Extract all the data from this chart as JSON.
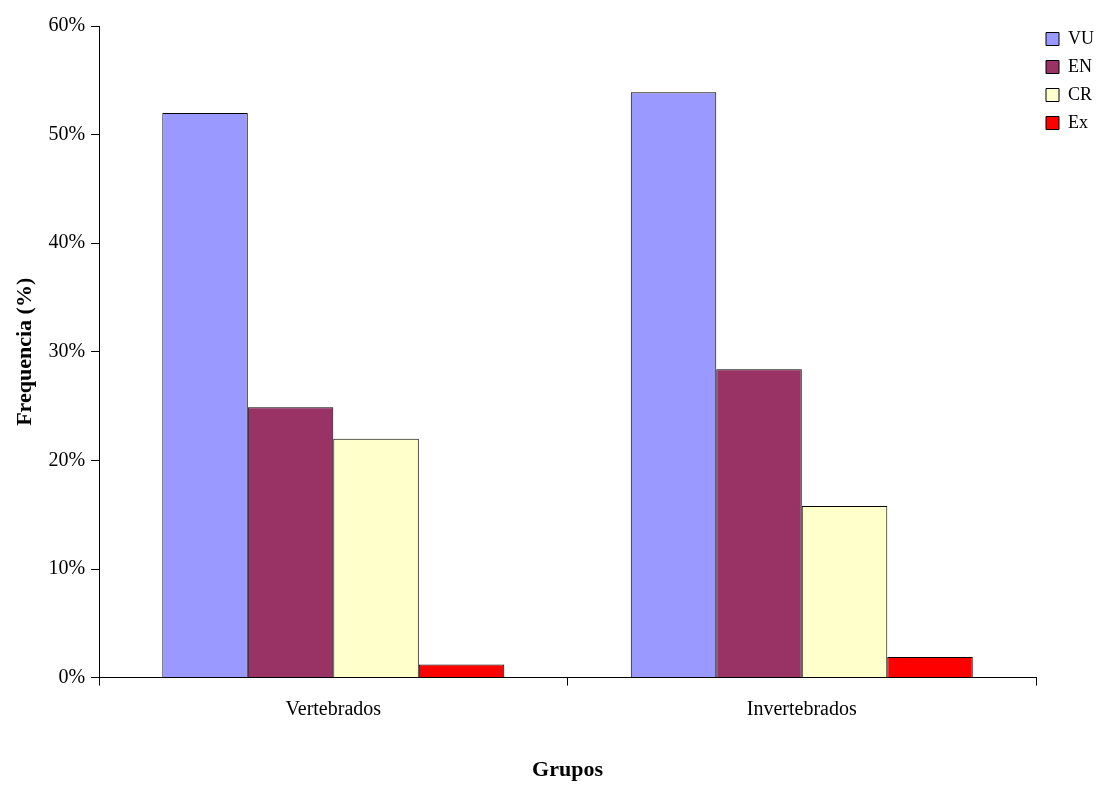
{
  "chart_data": {
    "type": "bar",
    "xlabel": "Grupos",
    "ylabel": "Frequencia (%)",
    "categories": [
      "Vertebrados",
      "Invertebrados"
    ],
    "series": [
      {
        "name": "VU",
        "color": "#9999ff",
        "values": [
          52.0,
          53.9
        ]
      },
      {
        "name": "EN",
        "color": "#993366",
        "values": [
          24.9,
          28.4
        ]
      },
      {
        "name": "CR",
        "color": "#ffffcc",
        "values": [
          22.0,
          15.8
        ]
      },
      {
        "name": "Ex",
        "color": "#ff0000",
        "values": [
          1.2,
          1.9
        ]
      }
    ],
    "ylim": [
      0,
      60
    ],
    "yticks": [
      {
        "value": 0,
        "label": "0%"
      },
      {
        "value": 10,
        "label": "10%"
      },
      {
        "value": 20,
        "label": "20%"
      },
      {
        "value": 30,
        "label": "30%"
      },
      {
        "value": 40,
        "label": "40%"
      },
      {
        "value": 50,
        "label": "50%"
      },
      {
        "value": 60,
        "label": "60%"
      }
    ],
    "grid": false,
    "legend": "top right"
  }
}
